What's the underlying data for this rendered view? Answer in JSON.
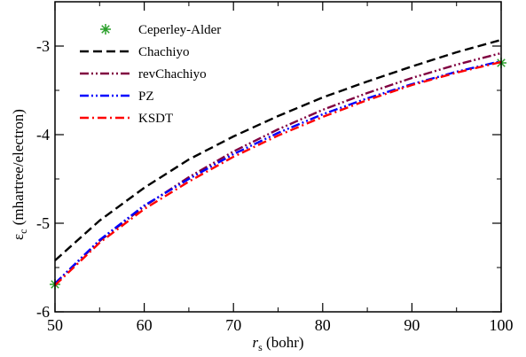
{
  "chart_data": {
    "type": "line",
    "xlim": [
      50,
      100
    ],
    "ylim": [
      -6,
      -2.5
    ],
    "x_ticks": [
      50,
      60,
      70,
      80,
      90,
      100
    ],
    "y_ticks": [
      -6,
      -5,
      -4,
      -3
    ],
    "x_tick_labels": [
      "50",
      "60",
      "70",
      "80",
      "90",
      "100"
    ],
    "y_tick_labels": [
      "-6",
      "-5",
      "-4",
      "-3"
    ],
    "xlabel": {
      "symbol": "r",
      "subscript": "s",
      "unit": "(bohr)"
    },
    "ylabel": {
      "symbol": "ε",
      "subscript": "c",
      "unit": "(mhartree/electron)"
    },
    "grid": false,
    "legend_position": "top-left",
    "series": [
      {
        "name": "Ceperley-Alder",
        "kind": "markers",
        "marker": "star",
        "color": "#2ca02c",
        "x": [
          50,
          100
        ],
        "y": [
          -5.69,
          -3.19
        ]
      },
      {
        "name": "Chachiyo",
        "kind": "line",
        "dash": "dashed",
        "color": "#000000",
        "x": [
          50,
          55,
          60,
          65,
          70,
          75,
          80,
          85,
          90,
          95,
          100
        ],
        "y": [
          -5.42,
          -4.97,
          -4.6,
          -4.28,
          -4.02,
          -3.79,
          -3.58,
          -3.4,
          -3.23,
          -3.07,
          -2.93
        ]
      },
      {
        "name": "revChachiyo",
        "kind": "line",
        "dash": "dash-dot-dot",
        "color": "#800040",
        "x": [
          50,
          55,
          60,
          65,
          70,
          75,
          80,
          85,
          90,
          95,
          100
        ],
        "y": [
          -5.68,
          -5.2,
          -4.81,
          -4.48,
          -4.19,
          -3.94,
          -3.72,
          -3.53,
          -3.36,
          -3.21,
          -3.08
        ]
      },
      {
        "name": "PZ",
        "kind": "line",
        "dash": "dash-dot-dot",
        "color": "#0000ff",
        "x": [
          50,
          55,
          60,
          65,
          70,
          75,
          80,
          85,
          90,
          95,
          100
        ],
        "y": [
          -5.68,
          -5.19,
          -4.8,
          -4.5,
          -4.22,
          -3.98,
          -3.77,
          -3.59,
          -3.43,
          -3.29,
          -3.17
        ]
      },
      {
        "name": "KSDT",
        "kind": "line",
        "dash": "dash-dot",
        "color": "#ff0000",
        "x": [
          50,
          55,
          60,
          65,
          70,
          75,
          80,
          85,
          90,
          95,
          100
        ],
        "y": [
          -5.7,
          -5.22,
          -4.84,
          -4.53,
          -4.25,
          -4.01,
          -3.8,
          -3.61,
          -3.44,
          -3.3,
          -3.18
        ]
      }
    ]
  }
}
